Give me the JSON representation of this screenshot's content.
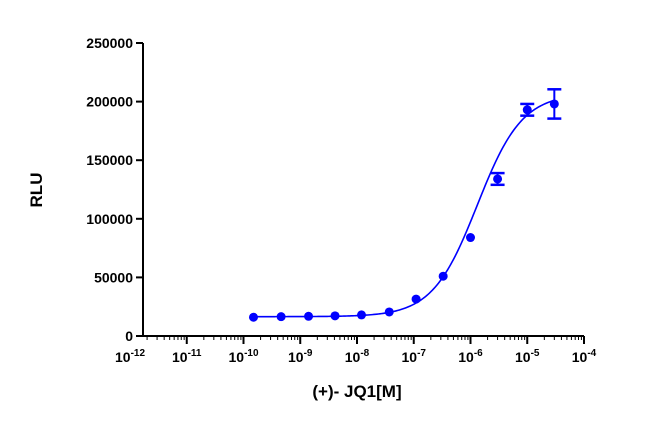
{
  "chart_data": {
    "type": "scatter",
    "title": "",
    "xlabel": "(+)- JQ1[M]",
    "ylabel": "RLU",
    "xscale": "log",
    "xlim": [
      1e-12,
      0.0001
    ],
    "ylim": [
      0,
      250000
    ],
    "grid": false,
    "color": "#0000ff",
    "x_ticks": [
      {
        "value": 1e-12,
        "base": "10",
        "exp": "-12"
      },
      {
        "value": 1e-11,
        "base": "10",
        "exp": "-11"
      },
      {
        "value": 1e-10,
        "base": "10",
        "exp": "-10"
      },
      {
        "value": 1e-09,
        "base": "10",
        "exp": "-9"
      },
      {
        "value": 1e-08,
        "base": "10",
        "exp": "-8"
      },
      {
        "value": 1e-07,
        "base": "10",
        "exp": "-7"
      },
      {
        "value": 1e-06,
        "base": "10",
        "exp": "-6"
      },
      {
        "value": 1e-05,
        "base": "10",
        "exp": "-5"
      },
      {
        "value": 0.0001,
        "base": "10",
        "exp": "-4"
      }
    ],
    "y_ticks": [
      {
        "value": 0,
        "label": "0"
      },
      {
        "value": 50000,
        "label": "50000"
      },
      {
        "value": 100000,
        "label": "100000"
      },
      {
        "value": 150000,
        "label": "150000"
      },
      {
        "value": 200000,
        "label": "200000"
      },
      {
        "value": 250000,
        "label": "250000"
      }
    ],
    "points": [
      {
        "x": 1.5e-10,
        "y": 16000,
        "err": 0
      },
      {
        "x": 4.6e-10,
        "y": 16500,
        "err": 0
      },
      {
        "x": 1.4e-09,
        "y": 16800,
        "err": 0
      },
      {
        "x": 4.1e-09,
        "y": 17200,
        "err": 0
      },
      {
        "x": 1.2e-08,
        "y": 18000,
        "err": 0
      },
      {
        "x": 3.7e-08,
        "y": 20500,
        "err": 0
      },
      {
        "x": 1.1e-07,
        "y": 31500,
        "err": 0
      },
      {
        "x": 3.3e-07,
        "y": 51000,
        "err": 0
      },
      {
        "x": 1e-06,
        "y": 84000,
        "err": 0
      },
      {
        "x": 3e-06,
        "y": 134000,
        "err": 5000
      },
      {
        "x": 1e-05,
        "y": 193000,
        "err": 5000
      },
      {
        "x": 3e-05,
        "y": 198000,
        "err": 12500
      }
    ],
    "fit": {
      "bottom": 16500,
      "top": 207000,
      "logEC50": -5.88,
      "hill": 1.1,
      "xmin": 1.5e-10,
      "xmax": 3e-05
    }
  }
}
